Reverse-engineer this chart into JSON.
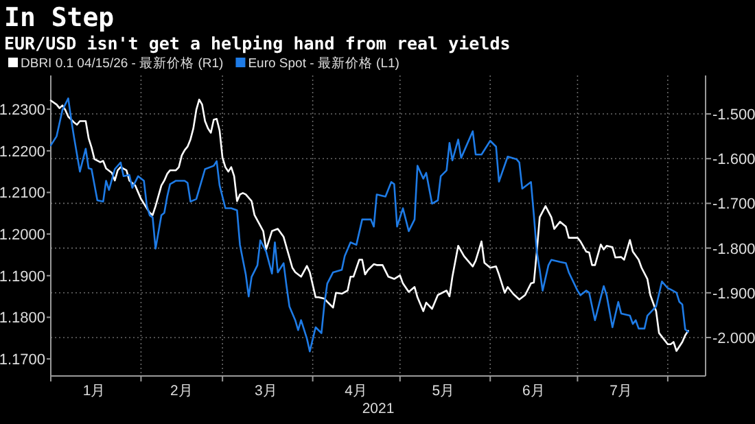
{
  "chart_data": {
    "type": "line",
    "title": "In Step",
    "subtitle": "EUR/USD isn't get a helping hand from real yields",
    "xlabel": "2021",
    "xlim": [
      "2021-01-01",
      "2021-08-14"
    ],
    "xticks": [
      {
        "value": "2021-01-01",
        "label": null
      },
      {
        "value": "2021-02-01",
        "label": null
      },
      {
        "value": "2021-03-01",
        "label": null
      },
      {
        "value": "2021-04-01",
        "label": null
      },
      {
        "value": "2021-05-01",
        "label": null
      },
      {
        "value": "2021-06-01",
        "label": null
      },
      {
        "value": "2021-07-01",
        "label": null
      },
      {
        "value": "2021-08-01",
        "label": null
      },
      {
        "value": "2021-01-16",
        "label": "1月"
      },
      {
        "value": "2021-02-15",
        "label": "2月"
      },
      {
        "value": "2021-03-16",
        "label": "3月"
      },
      {
        "value": "2021-04-16",
        "label": "4月"
      },
      {
        "value": "2021-05-16",
        "label": "5月"
      },
      {
        "value": "2021-06-16",
        "label": "6月"
      },
      {
        "value": "2021-07-16",
        "label": "7月"
      }
    ],
    "ylim": [
      1.1659,
      1.2381
    ],
    "yticks": [
      {
        "value": 1.17,
        "label": "1.1700"
      },
      {
        "value": 1.18,
        "label": "1.1800"
      },
      {
        "value": 1.19,
        "label": "1.1900"
      },
      {
        "value": 1.2,
        "label": "1.2000"
      },
      {
        "value": 1.21,
        "label": "1.2100"
      },
      {
        "value": 1.22,
        "label": "1.2200"
      },
      {
        "value": 1.23,
        "label": "1.2300"
      }
    ],
    "y2lim": [
      -2.086,
      -1.414
    ],
    "y2ticks": [
      {
        "value": -2.0,
        "label": "-2.000"
      },
      {
        "value": -1.9,
        "label": "-1.900"
      },
      {
        "value": -1.8,
        "label": "-1.800"
      },
      {
        "value": -1.7,
        "label": "-1.700"
      },
      {
        "value": -1.6,
        "label": "-1.600"
      },
      {
        "value": -1.5,
        "label": "-1.500"
      }
    ],
    "grid": true,
    "legend": "top left",
    "series": [
      {
        "name": "DBRI 0.1 04/15/26 - 最新价格 (R1)",
        "color": "#ffffff",
        "axis": "y2",
        "x": [
          "2021-01-01",
          "2021-01-03",
          "2021-01-04",
          "2021-01-05",
          "2021-01-06",
          "2021-01-07",
          "2021-01-09",
          "2021-01-10",
          "2021-01-11",
          "2021-01-13",
          "2021-01-14",
          "2021-01-15",
          "2021-01-16",
          "2021-01-18",
          "2021-01-19",
          "2021-01-20",
          "2021-01-22",
          "2021-01-23",
          "2021-01-24",
          "2021-01-25",
          "2021-01-27",
          "2021-01-28",
          "2021-01-30",
          "2021-01-31",
          "2021-02-01",
          "2021-02-03",
          "2021-02-04",
          "2021-02-05",
          "2021-02-06",
          "2021-02-08",
          "2021-02-09",
          "2021-02-10",
          "2021-02-11",
          "2021-02-13",
          "2021-02-14",
          "2021-02-15",
          "2021-02-16",
          "2021-02-17",
          "2021-02-18",
          "2021-02-19",
          "2021-02-20",
          "2021-02-21",
          "2021-02-22",
          "2021-02-23",
          "2021-02-24",
          "2021-02-25",
          "2021-02-26",
          "2021-02-27",
          "2021-02-28",
          "2021-03-01",
          "2021-03-02",
          "2021-03-03",
          "2021-03-04",
          "2021-03-05",
          "2021-03-06",
          "2021-03-07",
          "2021-03-08",
          "2021-03-09",
          "2021-03-11",
          "2021-03-12",
          "2021-03-15",
          "2021-03-16",
          "2021-03-18",
          "2021-03-20",
          "2021-03-22",
          "2021-03-23",
          "2021-03-25",
          "2021-03-26",
          "2021-03-28",
          "2021-03-30",
          "2021-03-31",
          "2021-04-02",
          "2021-04-03",
          "2021-04-05",
          "2021-04-06",
          "2021-04-08",
          "2021-04-09",
          "2021-04-11",
          "2021-04-13",
          "2021-04-14",
          "2021-04-15",
          "2021-04-17",
          "2021-04-18",
          "2021-04-19",
          "2021-04-20",
          "2021-04-22",
          "2021-04-23",
          "2021-04-25",
          "2021-04-27",
          "2021-04-29",
          "2021-05-01",
          "2021-05-02",
          "2021-05-04",
          "2021-05-06",
          "2021-05-07",
          "2021-05-09",
          "2021-05-10",
          "2021-05-12",
          "2021-05-14",
          "2021-05-17",
          "2021-05-18",
          "2021-05-19",
          "2021-05-21",
          "2021-05-23",
          "2021-05-26",
          "2021-05-27",
          "2021-05-29",
          "2021-05-30",
          "2021-06-01",
          "2021-06-03",
          "2021-06-04",
          "2021-06-06",
          "2021-06-07",
          "2021-06-09",
          "2021-06-11",
          "2021-06-13",
          "2021-06-15",
          "2021-06-16",
          "2021-06-17",
          "2021-06-18",
          "2021-06-20",
          "2021-06-22",
          "2021-06-23",
          "2021-06-25",
          "2021-06-27",
          "2021-06-28",
          "2021-07-01",
          "2021-07-02",
          "2021-07-04",
          "2021-07-05",
          "2021-07-06",
          "2021-07-07",
          "2021-07-09",
          "2021-07-10",
          "2021-07-11",
          "2021-07-13",
          "2021-07-14",
          "2021-07-16",
          "2021-07-17",
          "2021-07-19",
          "2021-07-20",
          "2021-07-22",
          "2021-07-23",
          "2021-07-25",
          "2021-07-26",
          "2021-07-28",
          "2021-07-29",
          "2021-08-01",
          "2021-08-02",
          "2021-08-03",
          "2021-08-04",
          "2021-08-06",
          "2021-08-07",
          "2021-08-08"
        ],
        "values": [
          -1.47,
          -1.479,
          -1.487,
          -1.481,
          -1.491,
          -1.506,
          -1.519,
          -1.524,
          -1.516,
          -1.516,
          -1.554,
          -1.575,
          -1.601,
          -1.608,
          -1.605,
          -1.622,
          -1.632,
          -1.649,
          -1.626,
          -1.619,
          -1.626,
          -1.649,
          -1.66,
          -1.675,
          -1.69,
          -1.711,
          -1.721,
          -1.726,
          -1.706,
          -1.66,
          -1.649,
          -1.634,
          -1.626,
          -1.626,
          -1.619,
          -1.593,
          -1.581,
          -1.573,
          -1.557,
          -1.532,
          -1.491,
          -1.468,
          -1.479,
          -1.516,
          -1.532,
          -1.542,
          -1.513,
          -1.511,
          -1.537,
          -1.598,
          -1.619,
          -1.629,
          -1.619,
          -1.639,
          -1.695,
          -1.68,
          -1.677,
          -1.68,
          -1.695,
          -1.726,
          -1.762,
          -1.803,
          -1.762,
          -1.757,
          -1.775,
          -1.798,
          -1.844,
          -1.854,
          -1.864,
          -1.84,
          -1.854,
          -1.91,
          -1.91,
          -1.913,
          -1.92,
          -1.933,
          -1.9,
          -1.902,
          -1.895,
          -1.864,
          -1.864,
          -1.826,
          -1.826,
          -1.859,
          -1.849,
          -1.836,
          -1.838,
          -1.838,
          -1.864,
          -1.869,
          -1.861,
          -1.879,
          -1.898,
          -1.887,
          -1.91,
          -1.941,
          -1.922,
          -1.936,
          -1.905,
          -1.895,
          -1.908,
          -1.864,
          -1.795,
          -1.818,
          -1.841,
          -1.828,
          -1.785,
          -1.833,
          -1.844,
          -1.841,
          -1.859,
          -1.9,
          -1.887,
          -1.903,
          -1.915,
          -1.905,
          -1.879,
          -1.877,
          -1.808,
          -1.731,
          -1.706,
          -1.731,
          -1.757,
          -1.741,
          -1.752,
          -1.777,
          -1.777,
          -1.785,
          -1.808,
          -1.81,
          -1.838,
          -1.838,
          -1.792,
          -1.803,
          -1.795,
          -1.798,
          -1.821,
          -1.82,
          -1.826,
          -1.782,
          -1.808,
          -1.826,
          -1.844,
          -1.869,
          -1.905,
          -1.941,
          -1.99,
          -2.015,
          -2.015,
          -2.01,
          -2.03,
          -2.01,
          -1.995,
          -1.985
        ]
      },
      {
        "name": "Euro Spot - 最新价格 (L1)",
        "color": "#1e7be6",
        "axis": "y",
        "x": [
          "2021-01-01",
          "2021-01-03",
          "2021-01-05",
          "2021-01-07",
          "2021-01-08",
          "2021-01-09",
          "2021-01-11",
          "2021-01-13",
          "2021-01-14",
          "2021-01-15",
          "2021-01-17",
          "2021-01-19",
          "2021-01-20",
          "2021-01-21",
          "2021-01-23",
          "2021-01-25",
          "2021-01-26",
          "2021-01-28",
          "2021-01-29",
          "2021-01-31",
          "2021-02-02",
          "2021-02-03",
          "2021-02-04",
          "2021-02-05",
          "2021-02-06",
          "2021-02-08",
          "2021-02-09",
          "2021-02-10",
          "2021-02-11",
          "2021-02-13",
          "2021-02-16",
          "2021-02-17",
          "2021-02-18",
          "2021-02-20",
          "2021-02-23",
          "2021-02-26",
          "2021-02-27",
          "2021-02-28",
          "2021-03-02",
          "2021-03-04",
          "2021-03-06",
          "2021-03-07",
          "2021-03-09",
          "2021-03-10",
          "2021-03-11",
          "2021-03-13",
          "2021-03-14",
          "2021-03-16",
          "2021-03-18",
          "2021-03-19",
          "2021-03-20",
          "2021-03-22",
          "2021-03-23",
          "2021-03-24",
          "2021-03-26",
          "2021-03-27",
          "2021-03-28",
          "2021-03-30",
          "2021-03-31",
          "2021-04-02",
          "2021-04-04",
          "2021-04-05",
          "2021-04-06",
          "2021-04-08",
          "2021-04-11",
          "2021-04-12",
          "2021-04-14",
          "2021-04-16",
          "2021-04-18",
          "2021-04-21",
          "2021-04-22",
          "2021-04-23",
          "2021-04-26",
          "2021-04-28",
          "2021-04-29",
          "2021-04-30",
          "2021-05-02",
          "2021-05-04",
          "2021-05-06",
          "2021-05-07",
          "2021-05-09",
          "2021-05-10",
          "2021-05-12",
          "2021-05-14",
          "2021-05-15",
          "2021-05-17",
          "2021-05-18",
          "2021-05-19",
          "2021-05-21",
          "2021-05-22",
          "2021-05-26",
          "2021-05-27",
          "2021-05-29",
          "2021-06-01",
          "2021-06-03",
          "2021-06-04",
          "2021-06-07",
          "2021-06-10",
          "2021-06-11",
          "2021-06-12",
          "2021-06-15",
          "2021-06-16",
          "2021-06-17",
          "2021-06-18",
          "2021-06-19",
          "2021-06-21",
          "2021-06-22",
          "2021-06-25",
          "2021-06-27",
          "2021-06-28",
          "2021-07-01",
          "2021-07-02",
          "2021-07-04",
          "2021-07-05",
          "2021-07-07",
          "2021-07-09",
          "2021-07-10",
          "2021-07-11",
          "2021-07-13",
          "2021-07-15",
          "2021-07-16",
          "2021-07-19",
          "2021-07-20",
          "2021-07-21",
          "2021-07-22",
          "2021-07-24",
          "2021-07-25",
          "2021-07-28",
          "2021-07-30",
          "2021-08-01",
          "2021-08-02",
          "2021-08-04",
          "2021-08-05",
          "2021-08-06",
          "2021-08-07",
          "2021-08-08"
        ],
        "values": [
          1.2213,
          1.2235,
          1.2298,
          1.2326,
          1.2276,
          1.2232,
          1.215,
          1.2205,
          1.2158,
          1.2156,
          1.2081,
          1.2078,
          1.2128,
          1.2106,
          1.2156,
          1.2172,
          1.2139,
          1.2142,
          1.2111,
          1.2139,
          1.2128,
          1.2068,
          1.2045,
          1.204,
          1.1965,
          1.2045,
          1.2051,
          1.209,
          1.212,
          1.2128,
          1.2128,
          1.2123,
          1.2078,
          1.2084,
          1.2156,
          1.2164,
          1.2175,
          1.2117,
          1.2062,
          1.2062,
          1.2057,
          1.1974,
          1.1903,
          1.185,
          1.1897,
          1.1925,
          1.1985,
          1.1958,
          1.1905,
          1.198,
          1.1908,
          1.193,
          1.1875,
          1.1826,
          1.1793,
          1.1769,
          1.1793,
          1.1749,
          1.1718,
          1.1776,
          1.1762,
          1.1831,
          1.1881,
          1.1908,
          1.1914,
          1.1947,
          1.198,
          1.1974,
          1.2035,
          1.2035,
          1.2018,
          1.2095,
          1.209,
          1.2125,
          1.212,
          1.2018,
          1.2062,
          1.2007,
          1.2035,
          1.2164,
          1.2133,
          1.2147,
          1.2073,
          1.2081,
          1.2139,
          1.2153,
          1.2219,
          1.2177,
          1.2227,
          1.2183,
          1.2247,
          1.2191,
          1.2191,
          1.2224,
          1.221,
          1.2126,
          1.2186,
          1.218,
          1.2172,
          1.2109,
          1.2125,
          1.2045,
          1.1958,
          1.1914,
          1.1864,
          1.1925,
          1.1938,
          1.1933,
          1.193,
          1.1908,
          1.1864,
          1.1853,
          1.1864,
          1.1859,
          1.1793,
          1.1848,
          1.1875,
          1.1853,
          1.1776,
          1.1837,
          1.1809,
          1.1804,
          1.1784,
          1.1793,
          1.1773,
          1.1773,
          1.1804,
          1.1826,
          1.1886,
          1.187,
          1.1867,
          1.1859,
          1.1837,
          1.1831,
          1.1771,
          1.1765
        ]
      }
    ]
  }
}
